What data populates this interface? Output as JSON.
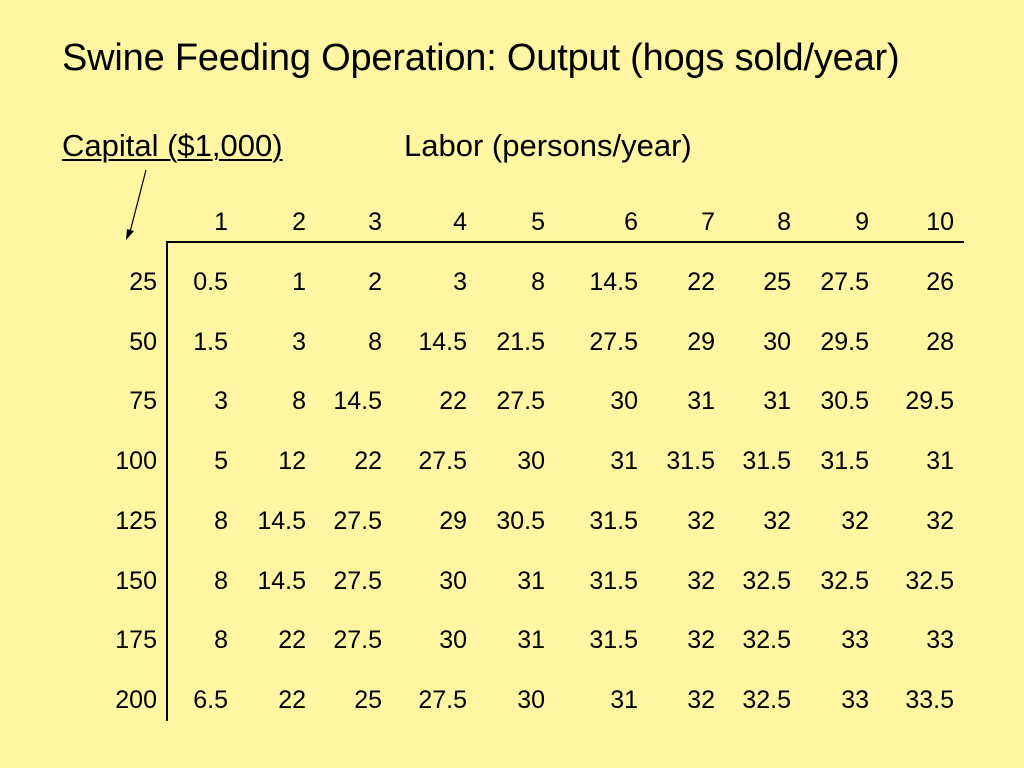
{
  "title": "Swine Feeding Operation: Output (hogs sold/year)",
  "capital_label": "Capital ($1,000)",
  "labor_label": "Labor (persons/year)",
  "table": {
    "column_headers": [
      "1",
      "2",
      "3",
      "4",
      "5",
      "6",
      "7",
      "8",
      "9",
      "10"
    ],
    "rows": [
      {
        "capital": "25",
        "values": [
          "0.5",
          "1",
          "2",
          "3",
          "8",
          "14.5",
          "22",
          "25",
          "27.5",
          "26"
        ]
      },
      {
        "capital": "50",
        "values": [
          "1.5",
          "3",
          "8",
          "14.5",
          "21.5",
          "27.5",
          "29",
          "30",
          "29.5",
          "28"
        ]
      },
      {
        "capital": "75",
        "values": [
          "3",
          "8",
          "14.5",
          "22",
          "27.5",
          "30",
          "31",
          "31",
          "30.5",
          "29.5"
        ]
      },
      {
        "capital": "100",
        "values": [
          "5",
          "12",
          "22",
          "27.5",
          "30",
          "31",
          "31.5",
          "31.5",
          "31.5",
          "31"
        ]
      },
      {
        "capital": "125",
        "values": [
          "8",
          "14.5",
          "27.5",
          "29",
          "30.5",
          "31.5",
          "32",
          "32",
          "32",
          "32"
        ]
      },
      {
        "capital": "150",
        "values": [
          "8",
          "14.5",
          "27.5",
          "30",
          "31",
          "31.5",
          "32",
          "32.5",
          "32.5",
          "32.5"
        ]
      },
      {
        "capital": "175",
        "values": [
          "8",
          "22",
          "27.5",
          "30",
          "31",
          "31.5",
          "32",
          "32.5",
          "33",
          "33"
        ]
      },
      {
        "capital": "200",
        "values": [
          "6.5",
          "22",
          "25",
          "27.5",
          "30",
          "31",
          "32",
          "32.5",
          "33",
          "33.5"
        ]
      }
    ]
  }
}
